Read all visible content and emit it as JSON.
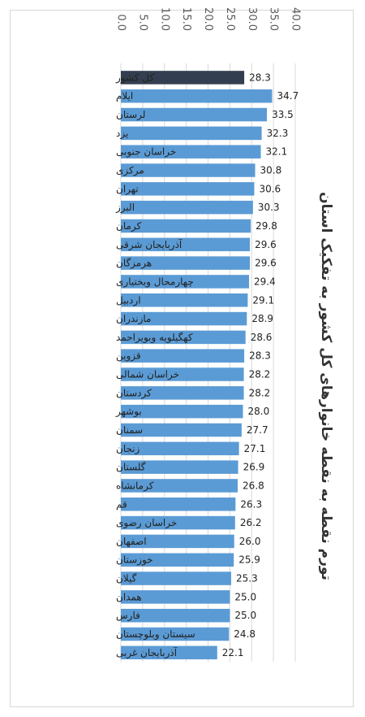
{
  "chart_data": {
    "type": "bar",
    "orientation": "horizontal",
    "title": "تورم نقطه به نقطه خانوارهای کل کشور به تفکیک استان",
    "xlim": [
      0,
      40
    ],
    "ticks": [
      "0.0",
      "5.0",
      "10.0",
      "15.0",
      "20.0",
      "25.0",
      "30.0",
      "35.0",
      "40.0"
    ],
    "grid": true,
    "categories": [
      "کل کشور",
      "ایلام",
      "لرستان",
      "یزد",
      "خراسان جنوبی",
      "مرکزی",
      "تهران",
      "البرز",
      "کرمان",
      "آذربایجان شرقی",
      "هرمزگان",
      "چهارمحال وبختیاری",
      "اردبیل",
      "مازندران",
      "کهگیلویه وبویراحمد",
      "قزوین",
      "خراسان شمالی",
      "کردستان",
      "بوشهر",
      "سمنان",
      "زنجان",
      "گلستان",
      "کرمانشاه",
      "قم",
      "خراسان رضوی",
      "اصفهان",
      "خوزستان",
      "گیلان",
      "همدان",
      "فارس",
      "سیستان وبلوچستان",
      "آذربایجان غربی"
    ],
    "values": [
      28.3,
      34.7,
      33.5,
      32.3,
      32.1,
      30.8,
      30.6,
      30.3,
      29.8,
      29.6,
      29.6,
      29.4,
      29.1,
      28.9,
      28.6,
      28.3,
      28.2,
      28.2,
      28.0,
      27.7,
      27.1,
      26.9,
      26.8,
      26.3,
      26.2,
      26.0,
      25.9,
      25.3,
      25.0,
      25.0,
      24.8,
      22.1
    ],
    "value_labels": [
      "28.3",
      "34.7",
      "33.5",
      "32.3",
      "32.1",
      "30.8",
      "30.6",
      "30.3",
      "29.8",
      "29.6",
      "29.6",
      "29.4",
      "29.1",
      "28.9",
      "28.6",
      "28.3",
      "28.2",
      "28.2",
      "28.0",
      "27.7",
      "27.1",
      "26.9",
      "26.8",
      "26.3",
      "26.2",
      "26.0",
      "25.9",
      "25.3",
      "25.0",
      "25.0",
      "24.8",
      "22.1"
    ],
    "highlight_index": 0,
    "colors": {
      "bar": "#5b9bd5",
      "highlight": "#333f50",
      "grid": "#d9d9d9"
    }
  }
}
